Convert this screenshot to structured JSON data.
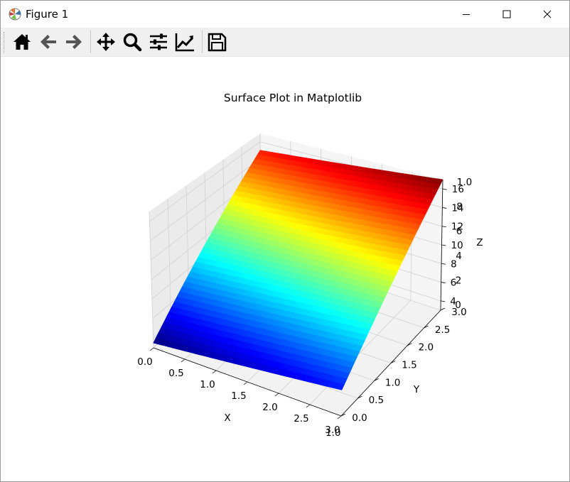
{
  "window": {
    "title": "Figure 1",
    "controls": [
      "minimize",
      "maximize",
      "close"
    ]
  },
  "toolbar": {
    "buttons": [
      {
        "name": "home",
        "icon": "home-icon"
      },
      {
        "name": "back",
        "icon": "arrow-left-icon"
      },
      {
        "name": "forward",
        "icon": "arrow-right-icon"
      },
      {
        "name": "pan",
        "icon": "move-icon"
      },
      {
        "name": "zoom",
        "icon": "magnifier-icon"
      },
      {
        "name": "configure-subplots",
        "icon": "sliders-icon"
      },
      {
        "name": "edit-axes",
        "icon": "line-chart-icon"
      },
      {
        "name": "save",
        "icon": "floppy-disk-icon"
      }
    ]
  },
  "chart_data": {
    "type": "surface",
    "title": "Surface Plot in Matplotlib",
    "xlabel": "X",
    "ylabel": "Y",
    "zlabel": "Z",
    "colormap": "jet",
    "xlim": [
      0.0,
      3.0
    ],
    "ylim": [
      0.0,
      3.0
    ],
    "zlim": [
      3,
      17
    ],
    "x_ticks": [
      "0.0",
      "0.5",
      "1.0",
      "1.5",
      "2.0",
      "2.5",
      "3.0"
    ],
    "y_ticks": [
      "0.0",
      "0.5",
      "1.0",
      "1.5",
      "2.0",
      "2.5",
      "3.0"
    ],
    "z_ticks": [
      "4",
      "6",
      "8",
      "10",
      "12",
      "14",
      "16"
    ],
    "overlapping_ticks": [
      "0",
      "2",
      "4",
      "6",
      "8",
      "1.0"
    ],
    "x_edge_partial_label": "1.0",
    "surface": {
      "z_min": 3.5,
      "z_max": 17.0,
      "x_samples": [
        0.0,
        0.5,
        1.0,
        1.5,
        2.0,
        2.5,
        3.0
      ],
      "y_samples": [
        0.0,
        0.5,
        1.0,
        1.5,
        2.0,
        2.5,
        3.0
      ],
      "z_at_corners": {
        "x0_y0": 3.5,
        "x3_y0": 5.5,
        "x0_y3": 15.0,
        "x3_y3": 17.0
      }
    },
    "grid": true
  }
}
